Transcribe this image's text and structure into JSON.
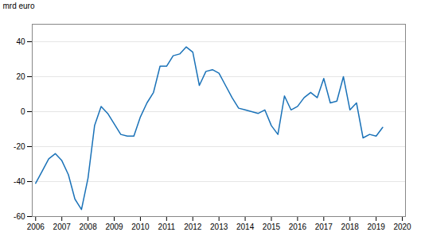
{
  "chart_data": {
    "type": "line",
    "ylabel": "mrd euro",
    "color": "#1a72b8",
    "grid": true,
    "x": [
      2006,
      2006.25,
      2006.5,
      2006.75,
      2007,
      2007.25,
      2007.5,
      2007.75,
      2008,
      2008.25,
      2008.5,
      2008.75,
      2009,
      2009.25,
      2009.5,
      2009.75,
      2010,
      2010.25,
      2010.5,
      2010.75,
      2011,
      2011.25,
      2011.5,
      2011.75,
      2012,
      2012.25,
      2012.5,
      2012.75,
      2013,
      2013.25,
      2013.5,
      2013.75,
      2014,
      2014.25,
      2014.5,
      2014.75,
      2015,
      2015.25,
      2015.5,
      2015.75,
      2016,
      2016.25,
      2016.5,
      2016.75,
      2017,
      2017.25,
      2017.5,
      2017.75,
      2018,
      2018.25,
      2018.5,
      2018.75,
      2019,
      2019.25
    ],
    "values": [
      -41,
      -34,
      -27,
      -24,
      -28,
      -36,
      -50,
      -56,
      -38,
      -8,
      3,
      -1,
      -7,
      -13,
      -14,
      -14,
      -3,
      5,
      11,
      26,
      26,
      32,
      33,
      37,
      34,
      15,
      23,
      24,
      22,
      15,
      8,
      2,
      1,
      0,
      -1,
      1,
      -8,
      -13,
      9,
      1,
      3,
      8,
      11,
      8,
      19,
      5,
      6,
      20,
      1,
      5,
      -15,
      -13,
      -14,
      -9
    ],
    "xlim": [
      2005.87,
      2020.12
    ],
    "xticks": [
      2006,
      2007,
      2008,
      2009,
      2010,
      2011,
      2012,
      2013,
      2014,
      2015,
      2016,
      2017,
      2018,
      2019,
      2020
    ],
    "ylim": [
      -60,
      50
    ],
    "yticks": [
      -60,
      -40,
      -20,
      0,
      20,
      40
    ]
  }
}
